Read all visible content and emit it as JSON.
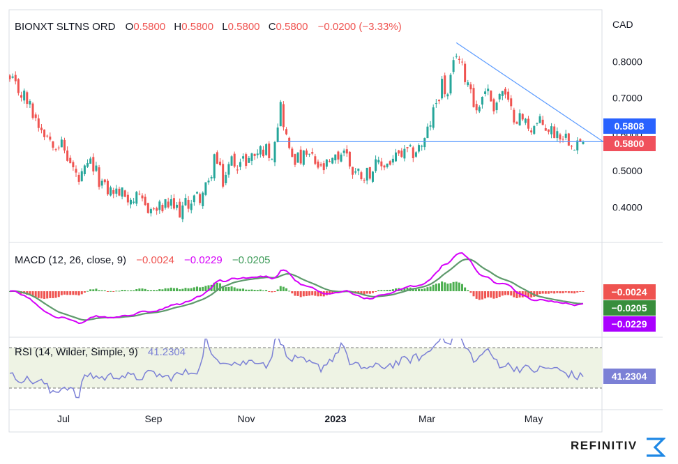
{
  "price_header": {
    "symbol": "BIONXT SLTNS ORD",
    "o_label": "O",
    "o_value": "0.5800",
    "h_label": "H",
    "h_value": "0.5800",
    "l_label": "L",
    "l_value": "0.5800",
    "c_label": "C",
    "c_value": "0.5800",
    "change": "−0.0200 (−3.33%)"
  },
  "macd_header": {
    "title": "MACD (12, 26, close, 9)",
    "hist_value": "−0.0024",
    "macd_value": "−0.0229",
    "signal_value": "−0.0205"
  },
  "rsi_header": {
    "title": "RSI (14, Wilder, Simple, 9)",
    "value": "41.2304"
  },
  "brand": {
    "name": "REFINITIV"
  },
  "colors": {
    "up": "#26a69a",
    "down": "#ef5350",
    "trend": "#5b9bff",
    "macd": "#d500f9",
    "signal": "#5e9a6c",
    "rsi": "#7b80d6",
    "rsi_band": "#eef3e4",
    "last_price": "#f0505c",
    "prev_line": "#2962ff"
  },
  "chart_data": [
    {
      "type": "candlestick",
      "title": "BIONXT SLTNS ORD",
      "currency": "CAD",
      "x_tick_labels": [
        "Jul",
        "Sep",
        "Nov",
        "2023",
        "Mar",
        "May"
      ],
      "y_tick_labels": [
        "0.4000",
        "0.5000",
        "0.6000",
        "0.7000",
        "0.8000"
      ],
      "ylim": [
        0.335,
        0.88
      ],
      "grid": false,
      "price_labels": [
        {
          "text": "0.5808",
          "value": 0.5808
        },
        {
          "text": "0.5800",
          "value": 0.58
        }
      ],
      "anchors": [
        {
          "t": 0,
          "v": 0.745
        },
        {
          "t": 5,
          "v": 0.705
        },
        {
          "t": 10,
          "v": 0.63
        },
        {
          "t": 14,
          "v": 0.59
        },
        {
          "t": 18,
          "v": 0.57
        },
        {
          "t": 24,
          "v": 0.47
        },
        {
          "t": 28,
          "v": 0.52
        },
        {
          "t": 33,
          "v": 0.45
        },
        {
          "t": 38,
          "v": 0.44
        },
        {
          "t": 44,
          "v": 0.42
        },
        {
          "t": 50,
          "v": 0.39
        },
        {
          "t": 55,
          "v": 0.405
        },
        {
          "t": 59,
          "v": 0.39
        },
        {
          "t": 63,
          "v": 0.42
        },
        {
          "t": 66,
          "v": 0.43
        },
        {
          "t": 69,
          "v": 0.46
        },
        {
          "t": 71,
          "v": 0.54
        },
        {
          "t": 74,
          "v": 0.47
        },
        {
          "t": 77,
          "v": 0.53
        },
        {
          "t": 80,
          "v": 0.52
        },
        {
          "t": 84,
          "v": 0.54
        },
        {
          "t": 88,
          "v": 0.56
        },
        {
          "t": 91,
          "v": 0.55
        },
        {
          "t": 94,
          "v": 0.68
        },
        {
          "t": 97,
          "v": 0.55
        },
        {
          "t": 100,
          "v": 0.53
        },
        {
          "t": 104,
          "v": 0.54
        },
        {
          "t": 108,
          "v": 0.5
        },
        {
          "t": 112,
          "v": 0.52
        },
        {
          "t": 116,
          "v": 0.56
        },
        {
          "t": 119,
          "v": 0.5
        },
        {
          "t": 123,
          "v": 0.49
        },
        {
          "t": 127,
          "v": 0.51
        },
        {
          "t": 131,
          "v": 0.52
        },
        {
          "t": 135,
          "v": 0.54
        },
        {
          "t": 140,
          "v": 0.55
        },
        {
          "t": 144,
          "v": 0.58
        },
        {
          "t": 147,
          "v": 0.66
        },
        {
          "t": 150,
          "v": 0.74
        },
        {
          "t": 152,
          "v": 0.7
        },
        {
          "t": 155,
          "v": 0.83
        },
        {
          "t": 157,
          "v": 0.78
        },
        {
          "t": 160,
          "v": 0.73
        },
        {
          "t": 162,
          "v": 0.66
        },
        {
          "t": 165,
          "v": 0.73
        },
        {
          "t": 168,
          "v": 0.68
        },
        {
          "t": 171,
          "v": 0.72
        },
        {
          "t": 174,
          "v": 0.66
        },
        {
          "t": 178,
          "v": 0.64
        },
        {
          "t": 181,
          "v": 0.62
        },
        {
          "t": 184,
          "v": 0.63
        },
        {
          "t": 188,
          "v": 0.61
        },
        {
          "t": 192,
          "v": 0.6
        },
        {
          "t": 196,
          "v": 0.58
        }
      ],
      "trendlines": [
        {
          "from": {
            "t": 155,
            "v": 0.852
          },
          "to": {
            "t": 206,
            "v": 0.58
          }
        },
        {
          "from": {
            "t": 93,
            "v": 0.58
          },
          "to": {
            "t": 206,
            "v": 0.58
          }
        }
      ]
    },
    {
      "type": "line",
      "title": "MACD (12, 26, close, 9)",
      "series": [
        {
          "name": "MACD",
          "values": [
            -0.0229
          ]
        },
        {
          "name": "Signal",
          "values": [
            -0.0205
          ]
        },
        {
          "name": "Histogram",
          "values": [
            -0.0024
          ]
        }
      ]
    },
    {
      "type": "line",
      "title": "RSI (14, Wilder, Simple, 9)",
      "ylim": [
        0,
        100
      ],
      "bands": [
        30,
        70
      ],
      "last_value": 41.2304,
      "anchors": [
        {
          "t": 0,
          "v": 42
        },
        {
          "t": 6,
          "v": 38
        },
        {
          "t": 12,
          "v": 35
        },
        {
          "t": 14,
          "v": 26
        },
        {
          "t": 20,
          "v": 32
        },
        {
          "t": 24,
          "v": 20
        },
        {
          "t": 26,
          "v": 44
        },
        {
          "t": 32,
          "v": 40
        },
        {
          "t": 38,
          "v": 43
        },
        {
          "t": 44,
          "v": 40
        },
        {
          "t": 50,
          "v": 45
        },
        {
          "t": 54,
          "v": 40
        },
        {
          "t": 60,
          "v": 44
        },
        {
          "t": 66,
          "v": 49
        },
        {
          "t": 68,
          "v": 80
        },
        {
          "t": 70,
          "v": 60
        },
        {
          "t": 74,
          "v": 58
        },
        {
          "t": 80,
          "v": 54
        },
        {
          "t": 86,
          "v": 58
        },
        {
          "t": 90,
          "v": 52
        },
        {
          "t": 93,
          "v": 86
        },
        {
          "t": 96,
          "v": 60
        },
        {
          "t": 102,
          "v": 56
        },
        {
          "t": 108,
          "v": 50
        },
        {
          "t": 112,
          "v": 60
        },
        {
          "t": 116,
          "v": 74
        },
        {
          "t": 118,
          "v": 52
        },
        {
          "t": 126,
          "v": 50
        },
        {
          "t": 132,
          "v": 53
        },
        {
          "t": 138,
          "v": 58
        },
        {
          "t": 144,
          "v": 62
        },
        {
          "t": 148,
          "v": 74
        },
        {
          "t": 150,
          "v": 86
        },
        {
          "t": 152,
          "v": 70
        },
        {
          "t": 155,
          "v": 88
        },
        {
          "t": 158,
          "v": 70
        },
        {
          "t": 162,
          "v": 56
        },
        {
          "t": 165,
          "v": 68
        },
        {
          "t": 170,
          "v": 54
        },
        {
          "t": 176,
          "v": 50
        },
        {
          "t": 182,
          "v": 48
        },
        {
          "t": 188,
          "v": 50
        },
        {
          "t": 194,
          "v": 44
        },
        {
          "t": 197,
          "v": 41
        }
      ]
    }
  ]
}
